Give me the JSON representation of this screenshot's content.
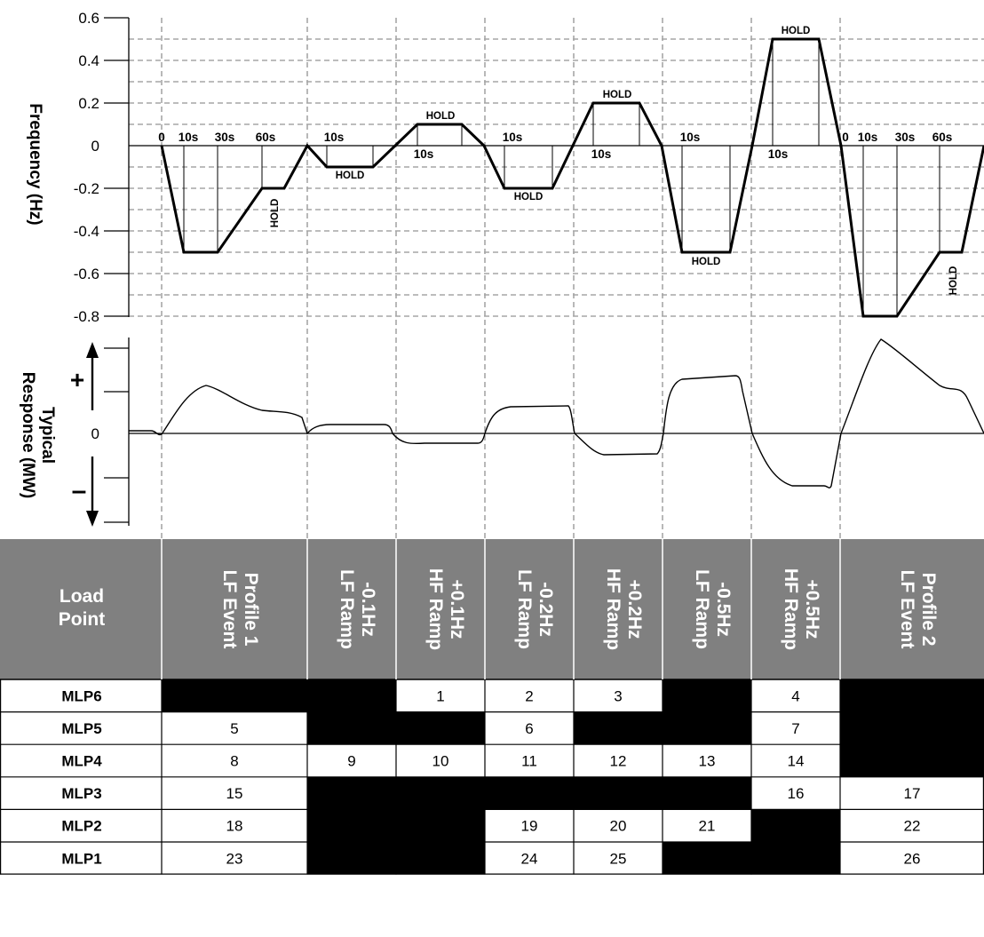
{
  "chart_data": {
    "type": "line",
    "frequency_axis": {
      "title": "Frequency (Hz)",
      "ticks": [
        "0.6",
        "0.4",
        "0.2",
        "0",
        "-0.2",
        "-0.4",
        "-0.6",
        "-0.8"
      ],
      "ylim": [
        -0.8,
        0.6
      ]
    },
    "response_axis": {
      "title_line1": "Typical",
      "title_line2": "Response (MW)",
      "plus": "+",
      "zero": "0",
      "minus": "–"
    },
    "segments": [
      {
        "name": "LF Event Profile 1",
        "min": -0.5,
        "hold": -0.2,
        "time_labels": [
          "0",
          "10s",
          "30s",
          "60s"
        ],
        "hold_label": "HOLD"
      },
      {
        "name": "LF Ramp -0.1Hz",
        "value": -0.1,
        "time_label": "10s",
        "hold_label": "HOLD"
      },
      {
        "name": "HF Ramp +0.1Hz",
        "value": 0.1,
        "time_label": "10s",
        "hold_label": "HOLD"
      },
      {
        "name": "LF Ramp -0.2Hz",
        "value": -0.2,
        "time_label": "10s",
        "hold_label": "HOLD"
      },
      {
        "name": "HF Ramp +0.2Hz",
        "value": 0.2,
        "time_label": "10s",
        "hold_label": "HOLD"
      },
      {
        "name": "LF Ramp -0.5Hz",
        "value": -0.5,
        "time_label": "10s",
        "hold_label": "HOLD"
      },
      {
        "name": "HF Ramp +0.5Hz",
        "value": 0.5,
        "time_label": "10s",
        "hold_label": "HOLD"
      },
      {
        "name": "LF Event Profile 2",
        "min": -0.8,
        "hold": -0.5,
        "time_labels": [
          "0",
          "10s",
          "30s",
          "60s"
        ],
        "hold_label": "HOLD"
      }
    ]
  },
  "table": {
    "corner_line1": "Load",
    "corner_line2": "Point",
    "columns": [
      {
        "line1": "LF Event",
        "line2": "Profile 1"
      },
      {
        "line1": "LF Ramp",
        "line2": "-0.1Hz"
      },
      {
        "line1": "HF Ramp",
        "line2": "+0.1Hz"
      },
      {
        "line1": "LF Ramp",
        "line2": "-0.2Hz"
      },
      {
        "line1": "HF Ramp",
        "line2": "+0.2Hz"
      },
      {
        "line1": "LF Ramp",
        "line2": "-0.5Hz"
      },
      {
        "line1": "HF Ramp",
        "line2": "+0.5Hz"
      },
      {
        "line1": "LF Event",
        "line2": "Profile 2"
      }
    ],
    "rows": [
      {
        "label": "MLP6",
        "cells": [
          null,
          null,
          "1",
          "2",
          "3",
          null,
          "4",
          null
        ]
      },
      {
        "label": "MLP5",
        "cells": [
          "5",
          null,
          null,
          "6",
          null,
          null,
          "7",
          null
        ]
      },
      {
        "label": "MLP4",
        "cells": [
          "8",
          "9",
          "10",
          "11",
          "12",
          "13",
          "14",
          null
        ]
      },
      {
        "label": "MLP3",
        "cells": [
          "15",
          null,
          null,
          null,
          null,
          null,
          "16",
          "17"
        ]
      },
      {
        "label": "MLP2",
        "cells": [
          "18",
          null,
          null,
          "19",
          "20",
          "21",
          null,
          "22"
        ]
      },
      {
        "label": "MLP1",
        "cells": [
          "23",
          null,
          null,
          "24",
          "25",
          null,
          null,
          "26"
        ]
      }
    ],
    "colors": {
      "header": "#808080",
      "blocked": "#000000",
      "open": "#ffffff"
    }
  }
}
